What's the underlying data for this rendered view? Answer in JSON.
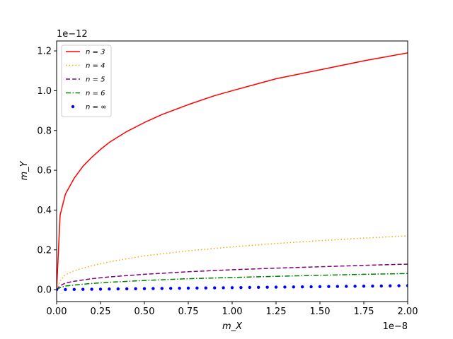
{
  "chart_data": {
    "type": "line",
    "xlabel": "m_X",
    "ylabel": "m_Y",
    "x_offset_label": "1e−8",
    "y_offset_label": "1e−12",
    "xlim": [
      0,
      2e-08
    ],
    "ylim": [
      -6e-14,
      1.25e-12
    ],
    "x_ticks": [
      0,
      2.5e-09,
      5e-09,
      7.5e-09,
      1e-08,
      1.25e-08,
      1.5e-08,
      1.75e-08,
      2e-08
    ],
    "x_tick_labels": [
      "0.00",
      "0.25",
      "0.50",
      "0.75",
      "1.00",
      "1.25",
      "1.50",
      "1.75",
      "2.00"
    ],
    "y_ticks": [
      0,
      2e-13,
      4e-13,
      6e-13,
      8e-13,
      1e-12,
      1.2e-12
    ],
    "y_tick_labels": [
      "0.0",
      "0.2",
      "0.4",
      "0.6",
      "0.8",
      "1.0",
      "1.2"
    ],
    "grid": false,
    "legend_position": "top-left",
    "series": [
      {
        "name": "n = 3",
        "color": "#ff0000",
        "style": "solid",
        "x": [
          0,
          2e-10,
          5e-10,
          1e-09,
          1.5e-09,
          2e-09,
          2.5e-09,
          3e-09,
          4e-09,
          5e-09,
          6e-09,
          7.5e-09,
          9e-09,
          1e-08,
          1.25e-08,
          1.5e-08,
          1.75e-08,
          2e-08
        ],
        "y": [
          0,
          3.75e-13,
          4.8e-13,
          5.6e-13,
          6.2e-13,
          6.65e-13,
          7.05e-13,
          7.4e-13,
          7.95e-13,
          8.4e-13,
          8.8e-13,
          9.3e-13,
          9.75e-13,
          1e-12,
          1.06e-12,
          1.105e-12,
          1.15e-12,
          1.19e-12
        ]
      },
      {
        "name": "n = 4",
        "color": "#ffa500",
        "style": "dotted",
        "x": [
          0,
          2e-10,
          5e-10,
          1e-09,
          2e-09,
          3e-09,
          4e-09,
          5e-09,
          7.5e-09,
          1e-08,
          1.25e-08,
          1.5e-08,
          1.75e-08,
          2e-08
        ],
        "y": [
          0,
          4.5e-14,
          7.5e-14,
          9.5e-14,
          1.2e-13,
          1.4e-13,
          1.55e-13,
          1.7e-13,
          1.95e-13,
          2.15e-13,
          2.32e-13,
          2.46e-13,
          2.59e-13,
          2.7e-13
        ]
      },
      {
        "name": "n = 5",
        "color": "#800080",
        "style": "dashed",
        "x": [
          0,
          2e-10,
          5e-10,
          1e-09,
          2e-09,
          3e-09,
          5e-09,
          7.5e-09,
          1e-08,
          1.25e-08,
          1.5e-08,
          1.75e-08,
          2e-08
        ],
        "y": [
          0,
          2e-14,
          3.3e-14,
          4.2e-14,
          5.5e-14,
          6.4e-14,
          7.7e-14,
          9e-14,
          1e-13,
          1.08e-13,
          1.15e-13,
          1.22e-13,
          1.28e-13
        ]
      },
      {
        "name": "n = 6",
        "color": "#008000",
        "style": "dashdot",
        "x": [
          0,
          2e-10,
          5e-10,
          1e-09,
          2e-09,
          3e-09,
          5e-09,
          7.5e-09,
          1e-08,
          1.25e-08,
          1.5e-08,
          1.75e-08,
          2e-08
        ],
        "y": [
          0,
          1e-14,
          1.8e-14,
          2.3e-14,
          3.1e-14,
          3.7e-14,
          4.6e-14,
          5.5e-14,
          6.1e-14,
          6.7e-14,
          7.2e-14,
          7.7e-14,
          8.1e-14
        ]
      },
      {
        "name": "n = ∞",
        "color": "#0000ff",
        "style": "markers",
        "x": [
          0,
          5e-10,
          1e-09,
          1.5e-09,
          2e-09,
          2.5e-09,
          3e-09,
          3.5e-09,
          4e-09,
          4.5e-09,
          5e-09,
          5.5e-09,
          6e-09,
          6.5e-09,
          7e-09,
          7.5e-09,
          8e-09,
          8.5e-09,
          9e-09,
          9.5e-09,
          1e-08,
          1.05e-08,
          1.1e-08,
          1.15e-08,
          1.2e-08,
          1.25e-08,
          1.3e-08,
          1.35e-08,
          1.4e-08,
          1.45e-08,
          1.5e-08,
          1.55e-08,
          1.6e-08,
          1.65e-08,
          1.7e-08,
          1.75e-08,
          1.8e-08,
          1.85e-08,
          1.9e-08,
          1.95e-08,
          2e-08
        ],
        "y": [
          0,
          5e-16,
          1e-15,
          1.5e-15,
          2e-15,
          2.5e-15,
          3e-15,
          3.5e-15,
          4e-15,
          4.5e-15,
          5e-15,
          5.5e-15,
          6e-15,
          6.5e-15,
          7e-15,
          7.5e-15,
          8e-15,
          8.5e-15,
          9e-15,
          9.5e-15,
          1e-14,
          1.05e-14,
          1.1e-14,
          1.15e-14,
          1.2e-14,
          1.25e-14,
          1.3e-14,
          1.35e-14,
          1.4e-14,
          1.45e-14,
          1.5e-14,
          1.55e-14,
          1.6e-14,
          1.65e-14,
          1.7e-14,
          1.75e-14,
          1.8e-14,
          1.85e-14,
          1.9e-14,
          1.95e-14,
          2e-14
        ]
      }
    ]
  }
}
